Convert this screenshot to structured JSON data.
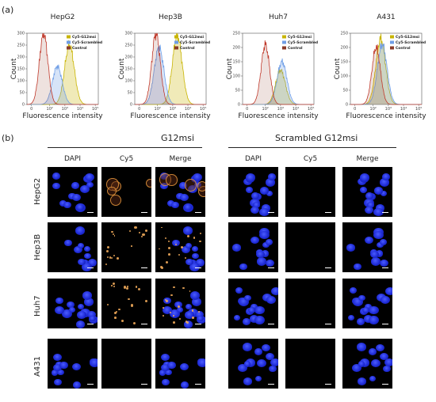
{
  "panel_a_label": "(a)",
  "panel_b_label": "(b)",
  "flow": {
    "xlabel": "Fluorescence intensity",
    "ylabel": "Count",
    "legend": [
      "Cy5-G12msi",
      "Cy5-Scrambled",
      "Control"
    ],
    "legend_colors": [
      "#c8b400",
      "#6f9ee6",
      "#8a3b2a"
    ],
    "panels": [
      {
        "title": "HepG2",
        "yticks": [
          "0",
          "50",
          "100",
          "150",
          "200",
          "250",
          "300"
        ],
        "ymax": 300
      },
      {
        "title": "Hep3B",
        "yticks": [
          "0",
          "50",
          "100",
          "150",
          "200",
          "250",
          "300"
        ],
        "ymax": 300
      },
      {
        "title": "Huh7",
        "yticks": [
          "0",
          "50",
          "100",
          "150",
          "200",
          "250"
        ],
        "ymax": 250
      },
      {
        "title": "A431",
        "yticks": [
          "0",
          "50",
          "100",
          "150",
          "200",
          "250"
        ],
        "ymax": 250
      }
    ],
    "xticks": [
      "0",
      "10²",
      "10³",
      "10⁴",
      "10⁵"
    ]
  },
  "chart_data": [
    {
      "type": "area",
      "title": "HepG2",
      "xlabel": "Fluorescence intensity",
      "ylabel": "Count",
      "ylim": [
        0,
        300
      ],
      "series": [
        {
          "name": "Cy5-G12msi",
          "peak_log10": 3.3,
          "peak_count": 250
        },
        {
          "name": "Cy5-Scrambled",
          "peak_log10": 2.5,
          "peak_count": 160
        },
        {
          "name": "Control",
          "peak_log10": 1.6,
          "peak_count": 300
        }
      ]
    },
    {
      "type": "area",
      "title": "Hep3B",
      "xlabel": "Fluorescence intensity",
      "ylabel": "Count",
      "ylim": [
        0,
        300
      ],
      "series": [
        {
          "name": "Cy5-G12msi",
          "peak_log10": 3.3,
          "peak_count": 290
        },
        {
          "name": "Cy5-Scrambled",
          "peak_log10": 2.1,
          "peak_count": 240
        },
        {
          "name": "Control",
          "peak_log10": 1.9,
          "peak_count": 300
        }
      ]
    },
    {
      "type": "area",
      "title": "Huh7",
      "xlabel": "Fluorescence intensity",
      "ylabel": "Count",
      "ylim": [
        0,
        250
      ],
      "series": [
        {
          "name": "Cy5-G12msi",
          "peak_log10": 3.0,
          "peak_count": 120
        },
        {
          "name": "Cy5-Scrambled",
          "peak_log10": 3.1,
          "peak_count": 150
        },
        {
          "name": "Control",
          "peak_log10": 2.0,
          "peak_count": 210
        }
      ]
    },
    {
      "type": "area",
      "title": "A431",
      "xlabel": "Fluorescence intensity",
      "ylabel": "Count",
      "ylim": [
        0,
        250
      ],
      "series": [
        {
          "name": "Cy5-G12msi",
          "peak_log10": 2.5,
          "peak_count": 230
        },
        {
          "name": "Cy5-Scrambled",
          "peak_log10": 2.6,
          "peak_count": 210
        },
        {
          "name": "Control",
          "peak_log10": 2.2,
          "peak_count": 200
        }
      ]
    }
  ],
  "micro": {
    "group_left": "G12msi",
    "group_right": "Scrambled G12msi",
    "columns": [
      "DAPI",
      "Cy5",
      "Merge"
    ],
    "rows": [
      "HepG2",
      "Hep3B",
      "Huh7",
      "A431"
    ]
  }
}
